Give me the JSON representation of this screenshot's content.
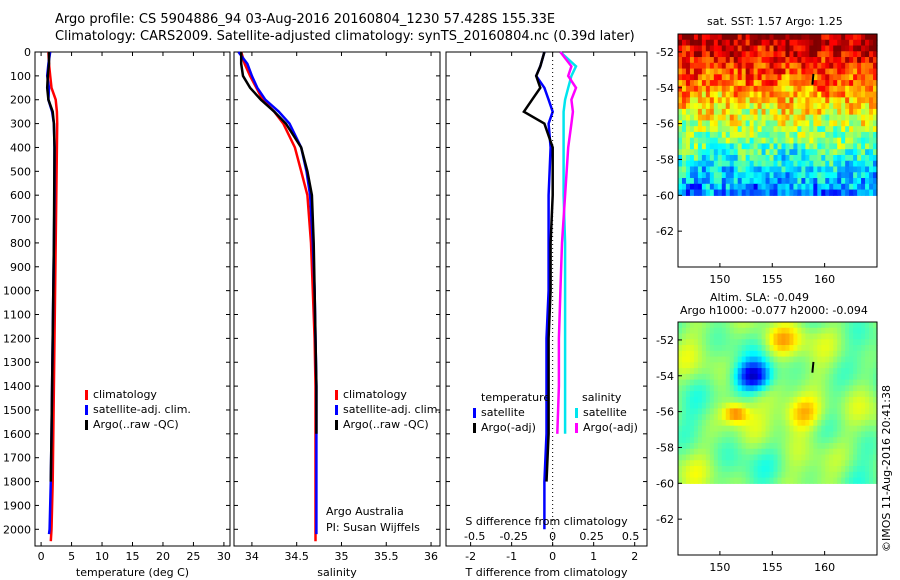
{
  "title_line1": "Argo profile: CS 5904886_94 03-Aug-2016 20160804_1230 57.428S 155.33E",
  "title_line2": "Climatology: CARS2009. Satellite-adjusted climatology: synTS_20160804.nc (0.39d later)",
  "credit": "©IMOS 11-Aug-2016 20:41:38",
  "map_sst_title": "sat. SST: 1.57 Argo: 1.25",
  "map_sla_title1": "Altim. SLA: -0.049",
  "map_sla_title2": "Argo h1000: -0.077 h2000: -0.094",
  "colors": {
    "climatology": "#ff0000",
    "satellite": "#0000ff",
    "argo": "#000000",
    "sat_salinity": "#00e5ee",
    "argo_salinity": "#ff00ff"
  },
  "chart_data": [
    {
      "type": "line",
      "xlabel": "temperature (deg C)",
      "ylabel": "",
      "xlim": [
        -1,
        31
      ],
      "ylim": [
        2070,
        0
      ],
      "xticks": [
        0,
        5,
        10,
        15,
        20,
        25,
        30
      ],
      "yticks": [
        0,
        100,
        200,
        300,
        400,
        500,
        600,
        700,
        800,
        900,
        1000,
        1100,
        1200,
        1300,
        1400,
        1500,
        1600,
        1700,
        1800,
        1900,
        2000
      ],
      "legend": [
        "climatology",
        "satellite-adj. clim.",
        "Argo(..raw -QC)"
      ],
      "series": [
        {
          "name": "climatology",
          "color": "#ff0000",
          "x": [
            1.2,
            1.3,
            1.5,
            1.7,
            2.4,
            2.6,
            2.65,
            2.6,
            2.5,
            2.4,
            2.3,
            2.2,
            2.1,
            2.0,
            1.9,
            1.8,
            1.7,
            1.6
          ],
          "y": [
            0,
            50,
            100,
            150,
            200,
            250,
            300,
            400,
            600,
            800,
            1000,
            1200,
            1400,
            1600,
            1800,
            1900,
            2000,
            2050
          ]
        },
        {
          "name": "satellite-adj. clim.",
          "color": "#0000ff",
          "x": [
            1.5,
            1.2,
            1.0,
            1.3,
            1.2,
            1.8,
            2.1,
            2.2,
            2.2,
            2.1,
            2.0,
            1.9,
            1.8,
            1.7,
            1.6,
            1.5,
            1.4,
            1.3
          ],
          "y": [
            0,
            50,
            100,
            150,
            200,
            250,
            300,
            400,
            600,
            800,
            1000,
            1200,
            1400,
            1600,
            1800,
            1900,
            2000,
            2020
          ]
        },
        {
          "name": "Argo(..raw -QC)",
          "color": "#000000",
          "x": [
            1.3,
            1.3,
            1.1,
            1.0,
            1.2,
            1.9,
            2.1,
            2.2,
            2.15,
            2.1,
            2.0,
            1.9,
            1.8,
            1.7,
            1.6
          ],
          "y": [
            0,
            50,
            100,
            150,
            200,
            250,
            300,
            400,
            600,
            800,
            1000,
            1200,
            1400,
            1600,
            1800
          ]
        }
      ]
    },
    {
      "type": "line",
      "xlabel": "salinity",
      "ylabel": "",
      "xlim": [
        33.8,
        36.1
      ],
      "ylim": [
        2070,
        0
      ],
      "xticks": [
        34,
        34.5,
        35,
        35.5,
        36
      ],
      "xticklabels": [
        "34",
        "34.5",
        "35",
        "35.5",
        "36"
      ],
      "legend": [
        "climatology",
        "satellite-adj. clim.",
        "Argo(..raw -QC)"
      ],
      "annotation": [
        "Argo Australia",
        "PI: Susan Wijffels"
      ],
      "series": [
        {
          "name": "climatology",
          "color": "#ff0000",
          "x": [
            33.88,
            33.92,
            33.98,
            34.05,
            34.12,
            34.25,
            34.35,
            34.48,
            34.55,
            34.62,
            34.66,
            34.68,
            34.7,
            34.71,
            34.71,
            34.71,
            34.71
          ],
          "y": [
            0,
            50,
            100,
            150,
            200,
            250,
            300,
            400,
            500,
            600,
            800,
            1000,
            1200,
            1400,
            1600,
            1800,
            2050
          ]
        },
        {
          "name": "satellite-adj. clim.",
          "color": "#0000ff",
          "x": [
            33.85,
            33.95,
            34.0,
            34.06,
            34.15,
            34.3,
            34.42,
            34.55,
            34.61,
            34.65,
            34.68,
            34.7,
            34.71,
            34.72,
            34.72,
            34.72,
            34.72
          ],
          "y": [
            0,
            50,
            100,
            150,
            200,
            250,
            300,
            400,
            500,
            600,
            800,
            1000,
            1200,
            1400,
            1600,
            1800,
            2020
          ]
        },
        {
          "name": "Argo(..raw -QC)",
          "color": "#000000",
          "x": [
            33.88,
            33.88,
            33.9,
            33.98,
            34.1,
            34.25,
            34.38,
            34.55,
            34.62,
            34.67,
            34.69,
            34.7,
            34.71,
            34.72,
            34.72
          ],
          "y": [
            0,
            50,
            100,
            150,
            200,
            250,
            300,
            400,
            500,
            600,
            800,
            1000,
            1200,
            1400,
            1600
          ]
        }
      ]
    },
    {
      "type": "line",
      "xlabel": "T difference from climatology",
      "xlabel_top": "S difference from climatology",
      "ylabel": "",
      "xlim": [
        -2.6,
        2.3
      ],
      "ylim": [
        2070,
        0
      ],
      "xticks": [
        -2,
        -1,
        0,
        1,
        2
      ],
      "xticks_top": [
        -0.5,
        -0.25,
        0,
        0.25,
        0.5
      ],
      "legend_temperature_title": "temperature",
      "legend_salinity_title": "salinity",
      "legend": [
        "satellite",
        "Argo(-adj)",
        "satellite",
        "Argo(-adj)"
      ],
      "series": [
        {
          "name": "satellite",
          "color": "#0000ff",
          "x": [
            -0.2,
            -0.3,
            -0.4,
            -0.2,
            -0.1,
            0.0,
            -0.1,
            -0.05,
            -0.1,
            -0.1,
            -0.1,
            -0.15,
            -0.15,
            -0.15,
            -0.2,
            -0.2
          ],
          "y": [
            0,
            60,
            100,
            150,
            200,
            250,
            300,
            400,
            600,
            800,
            1000,
            1200,
            1400,
            1600,
            1800,
            2000
          ]
        },
        {
          "name": "Argo(-adj)",
          "color": "#000000",
          "x": [
            -0.2,
            -0.3,
            -0.4,
            -0.3,
            -0.5,
            -0.7,
            -0.2,
            0.0,
            0.0,
            -0.05,
            -0.05,
            -0.1,
            -0.1,
            -0.1,
            -0.15
          ],
          "y": [
            0,
            60,
            100,
            150,
            200,
            250,
            300,
            400,
            600,
            800,
            1000,
            1200,
            1400,
            1600,
            1800
          ]
        },
        {
          "name": "satellite",
          "color": "#00e5ee",
          "x": [
            0.05,
            0.15,
            0.12,
            0.1,
            0.08,
            0.07,
            0.07,
            0.07,
            0.07,
            0.08,
            0.08,
            0.08,
            0.08,
            0.08
          ],
          "y": [
            0,
            60,
            100,
            150,
            200,
            250,
            300,
            400,
            600,
            800,
            1000,
            1200,
            1400,
            1600
          ]
        },
        {
          "name": "Argo(-adj)",
          "color": "#ff00ff",
          "x": [
            0.05,
            0.12,
            0.1,
            0.15,
            0.12,
            0.13,
            0.12,
            0.1,
            0.08,
            0.06,
            0.05,
            0.04,
            0.04,
            0.03
          ],
          "y": [
            0,
            60,
            100,
            150,
            200,
            250,
            300,
            400,
            600,
            800,
            1000,
            1200,
            1400,
            1600
          ]
        }
      ]
    },
    {
      "type": "heatmap",
      "title": "sat. SST: 1.57 Argo: 1.25",
      "xlim": [
        146,
        165
      ],
      "ylim": [
        -64,
        -51
      ],
      "xticks": [
        150,
        155,
        160
      ],
      "yticks": [
        -52,
        -54,
        -56,
        -58,
        -60,
        -62
      ],
      "data_lat_range": [
        -60,
        -51
      ],
      "argo_position": {
        "lon": 155.33,
        "lat": -57.428
      }
    },
    {
      "type": "heatmap",
      "title": "Altim. SLA: -0.049",
      "subtitle": "Argo h1000: -0.077 h2000: -0.094",
      "xlim": [
        146,
        165
      ],
      "ylim": [
        -64,
        -51
      ],
      "xticks": [
        150,
        155,
        160
      ],
      "yticks": [
        -52,
        -54,
        -56,
        -58,
        -60,
        -62
      ],
      "data_lat_range": [
        -60,
        -51
      ],
      "argo_position": {
        "lon": 155.33,
        "lat": -57.428
      }
    }
  ]
}
